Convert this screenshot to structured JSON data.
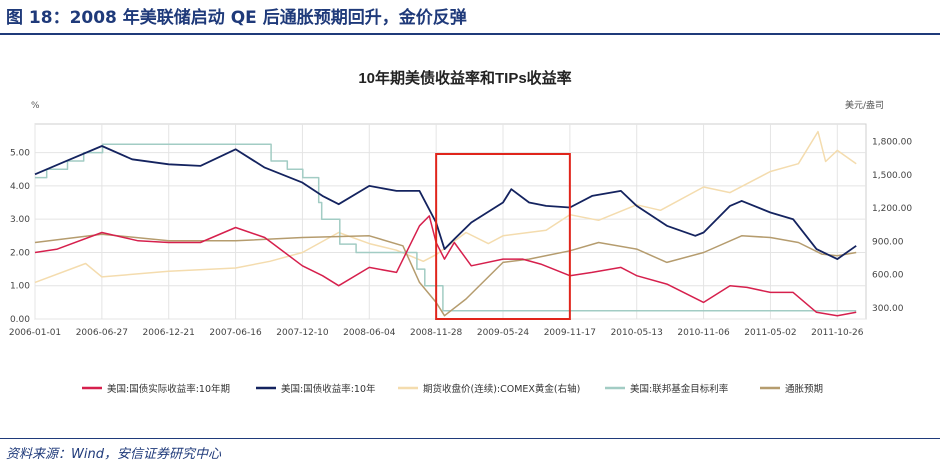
{
  "figure_title": "图 18：2008 年美联储启动 QE 后通胀预期回升，金价反弹",
  "source": "资料来源：Wind，安信证券研究中心",
  "chart_data": {
    "type": "line",
    "title": "10年期美债收益率和TIPs收益率",
    "left_unit": "%",
    "right_unit": "美元/盎司",
    "x_tick_labels": [
      "2006-01-01",
      "2006-06-27",
      "2006-12-21",
      "2007-06-16",
      "2007-12-10",
      "2008-06-04",
      "2008-11-28",
      "2009-05-24",
      "2009-11-17",
      "2010-05-13",
      "2010-11-06",
      "2011-05-02",
      "2011-10-26"
    ],
    "left_axis": {
      "ylim": [
        0,
        5.5
      ],
      "ticks": [
        "0.00",
        "1.00",
        "2.00",
        "3.00",
        "4.00",
        "5.00"
      ]
    },
    "right_axis": {
      "ylim": [
        200,
        1850
      ],
      "ticks": [
        "300.00",
        "600.00",
        "900.00",
        "1,200.00",
        "1,500.00",
        "1,800.00"
      ]
    },
    "highlight": {
      "x_range": [
        "2008-11-28",
        "2009-11-17"
      ],
      "color": "#e0251b"
    },
    "series": [
      {
        "name": "美国:国债实际收益率:10年期",
        "color": "#d6204d",
        "axis": "left",
        "points": [
          [
            "2006-01-01",
            2.0
          ],
          [
            "2006-03-01",
            2.1
          ],
          [
            "2006-06-27",
            2.6
          ],
          [
            "2006-10-01",
            2.35
          ],
          [
            "2006-12-21",
            2.3
          ],
          [
            "2007-03-15",
            2.3
          ],
          [
            "2007-06-16",
            2.75
          ],
          [
            "2007-09-01",
            2.45
          ],
          [
            "2007-12-10",
            1.6
          ],
          [
            "2008-02-01",
            1.3
          ],
          [
            "2008-03-15",
            1.0
          ],
          [
            "2008-06-04",
            1.55
          ],
          [
            "2008-08-15",
            1.4
          ],
          [
            "2008-10-15",
            2.8
          ],
          [
            "2008-11-10",
            3.1
          ],
          [
            "2008-11-28",
            2.3
          ],
          [
            "2008-12-20",
            1.8
          ],
          [
            "2009-01-15",
            2.3
          ],
          [
            "2009-03-01",
            1.6
          ],
          [
            "2009-05-24",
            1.8
          ],
          [
            "2009-07-15",
            1.8
          ],
          [
            "2009-09-01",
            1.65
          ],
          [
            "2009-11-17",
            1.3
          ],
          [
            "2010-01-15",
            1.4
          ],
          [
            "2010-04-01",
            1.55
          ],
          [
            "2010-05-13",
            1.3
          ],
          [
            "2010-08-01",
            1.05
          ],
          [
            "2010-11-06",
            0.5
          ],
          [
            "2011-01-15",
            1.0
          ],
          [
            "2011-03-01",
            0.95
          ],
          [
            "2011-05-02",
            0.8
          ],
          [
            "2011-07-01",
            0.8
          ],
          [
            "2011-09-01",
            0.2
          ],
          [
            "2011-10-26",
            0.1
          ],
          [
            "2011-12-15",
            0.2
          ]
        ]
      },
      {
        "name": "美国:国债收益率:10年",
        "color": "#14235f",
        "axis": "left",
        "points": [
          [
            "2006-01-01",
            4.35
          ],
          [
            "2006-03-15",
            4.7
          ],
          [
            "2006-06-27",
            5.2
          ],
          [
            "2006-09-15",
            4.8
          ],
          [
            "2006-12-21",
            4.65
          ],
          [
            "2007-03-15",
            4.6
          ],
          [
            "2007-06-16",
            5.1
          ],
          [
            "2007-09-01",
            4.55
          ],
          [
            "2007-12-10",
            4.1
          ],
          [
            "2008-02-01",
            3.7
          ],
          [
            "2008-03-15",
            3.45
          ],
          [
            "2008-06-04",
            4.0
          ],
          [
            "2008-08-15",
            3.85
          ],
          [
            "2008-10-15",
            3.85
          ],
          [
            "2008-11-28",
            2.9
          ],
          [
            "2008-12-20",
            2.1
          ],
          [
            "2009-01-15",
            2.4
          ],
          [
            "2009-03-01",
            2.9
          ],
          [
            "2009-05-24",
            3.5
          ],
          [
            "2009-06-15",
            3.9
          ],
          [
            "2009-08-01",
            3.5
          ],
          [
            "2009-09-15",
            3.4
          ],
          [
            "2009-11-17",
            3.35
          ],
          [
            "2010-01-15",
            3.7
          ],
          [
            "2010-04-01",
            3.85
          ],
          [
            "2010-05-13",
            3.4
          ],
          [
            "2010-08-01",
            2.8
          ],
          [
            "2010-10-15",
            2.5
          ],
          [
            "2010-11-06",
            2.6
          ],
          [
            "2011-01-15",
            3.4
          ],
          [
            "2011-02-15",
            3.55
          ],
          [
            "2011-05-02",
            3.2
          ],
          [
            "2011-07-01",
            3.0
          ],
          [
            "2011-09-01",
            2.1
          ],
          [
            "2011-10-26",
            1.8
          ],
          [
            "2011-12-15",
            2.2
          ]
        ]
      },
      {
        "name": "期货收盘价(连续):COMEX黄金(右轴)",
        "color": "#f4dcae",
        "axis": "right",
        "points": [
          [
            "2006-01-01",
            530
          ],
          [
            "2006-05-15",
            700
          ],
          [
            "2006-06-27",
            580
          ],
          [
            "2006-12-21",
            630
          ],
          [
            "2007-06-16",
            660
          ],
          [
            "2007-09-15",
            720
          ],
          [
            "2007-12-10",
            800
          ],
          [
            "2008-03-15",
            980
          ],
          [
            "2008-06-04",
            880
          ],
          [
            "2008-08-15",
            820
          ],
          [
            "2008-10-25",
            720
          ],
          [
            "2008-11-28",
            780
          ],
          [
            "2009-02-15",
            980
          ],
          [
            "2009-04-15",
            880
          ],
          [
            "2009-05-24",
            950
          ],
          [
            "2009-09-15",
            1000
          ],
          [
            "2009-11-17",
            1140
          ],
          [
            "2010-02-01",
            1090
          ],
          [
            "2010-05-13",
            1230
          ],
          [
            "2010-07-15",
            1180
          ],
          [
            "2010-11-06",
            1390
          ],
          [
            "2011-01-15",
            1340
          ],
          [
            "2011-05-02",
            1530
          ],
          [
            "2011-07-15",
            1600
          ],
          [
            "2011-09-05",
            1890
          ],
          [
            "2011-09-25",
            1620
          ],
          [
            "2011-10-26",
            1720
          ],
          [
            "2011-12-15",
            1600
          ]
        ]
      },
      {
        "name": "美国:联邦基金目标利率",
        "color": "#a2ccc4",
        "axis": "left",
        "points": [
          [
            "2006-01-01",
            4.25
          ],
          [
            "2006-02-01",
            4.5
          ],
          [
            "2006-03-28",
            4.75
          ],
          [
            "2006-05-10",
            5.0
          ],
          [
            "2006-06-29",
            5.25
          ],
          [
            "2007-09-18",
            4.75
          ],
          [
            "2007-10-31",
            4.5
          ],
          [
            "2007-12-11",
            4.25
          ],
          [
            "2008-01-22",
            3.5
          ],
          [
            "2008-01-30",
            3.0
          ],
          [
            "2008-03-18",
            2.25
          ],
          [
            "2008-04-30",
            2.0
          ],
          [
            "2008-10-08",
            1.5
          ],
          [
            "2008-10-29",
            1.0
          ],
          [
            "2008-12-16",
            0.25
          ],
          [
            "2011-12-15",
            0.25
          ]
        ]
      },
      {
        "name": "通胀预期",
        "color": "#b59c6e",
        "axis": "left",
        "points": [
          [
            "2006-01-01",
            2.3
          ],
          [
            "2006-06-27",
            2.55
          ],
          [
            "2006-12-21",
            2.35
          ],
          [
            "2007-06-16",
            2.35
          ],
          [
            "2007-12-10",
            2.45
          ],
          [
            "2008-06-04",
            2.5
          ],
          [
            "2008-09-01",
            2.2
          ],
          [
            "2008-10-15",
            1.1
          ],
          [
            "2008-11-28",
            0.5
          ],
          [
            "2008-12-20",
            0.1
          ],
          [
            "2009-02-15",
            0.6
          ],
          [
            "2009-05-24",
            1.7
          ],
          [
            "2009-08-01",
            1.8
          ],
          [
            "2009-11-17",
            2.05
          ],
          [
            "2010-02-01",
            2.3
          ],
          [
            "2010-05-13",
            2.1
          ],
          [
            "2010-08-01",
            1.7
          ],
          [
            "2010-11-06",
            2.0
          ],
          [
            "2011-02-15",
            2.5
          ],
          [
            "2011-05-02",
            2.45
          ],
          [
            "2011-07-15",
            2.3
          ],
          [
            "2011-09-15",
            1.95
          ],
          [
            "2011-10-26",
            1.9
          ],
          [
            "2011-12-15",
            2.0
          ]
        ]
      }
    ]
  }
}
